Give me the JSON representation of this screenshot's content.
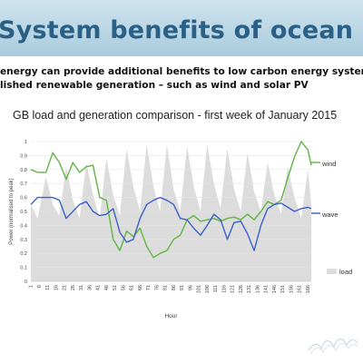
{
  "slide": {
    "title": "System benefits of ocean energy",
    "subtitle_line1": "energy can provide additional benefits to low carbon energy systems due t",
    "subtitle_line2": "lished renewable generation – such as wind and solar PV"
  },
  "chart_data": {
    "type": "line",
    "title": "GB load and generation comparison - first week of January 2015",
    "xlabel": "Hour",
    "ylabel": "Power (normalised to peak)",
    "xlim": [
      1,
      168
    ],
    "ylim": [
      0,
      1
    ],
    "yticks": [
      "0",
      "0.1",
      "0.2",
      "0.3",
      "0.4",
      "0.5",
      "0.6",
      "0.7",
      "0.8",
      "0.9",
      "1"
    ],
    "xticks": [
      "1",
      "6",
      "11",
      "16",
      "21",
      "26",
      "31",
      "36",
      "41",
      "46",
      "51",
      "56",
      "61",
      "66",
      "71",
      "76",
      "81",
      "86",
      "91",
      "96",
      "101",
      "106",
      "111",
      "116",
      "121",
      "126",
      "131",
      "136",
      "141",
      "146",
      "151",
      "156",
      "161",
      "166"
    ],
    "grid": true,
    "colors": {
      "wind": "#5fb544",
      "wave": "#3a5fc8",
      "load": "#dcdcdc"
    },
    "series": [
      {
        "name": "wind",
        "x": [
          1,
          5,
          10,
          14,
          18,
          22,
          26,
          30,
          34,
          38,
          42,
          46,
          50,
          54,
          58,
          62,
          66,
          70,
          74,
          78,
          82,
          86,
          90,
          94,
          98,
          102,
          106,
          110,
          114,
          118,
          122,
          126,
          130,
          134,
          138,
          142,
          146,
          150,
          154,
          158,
          162,
          166,
          168
        ],
        "values": [
          0.8,
          0.78,
          0.78,
          0.92,
          0.85,
          0.73,
          0.85,
          0.78,
          0.82,
          0.83,
          0.6,
          0.58,
          0.3,
          0.22,
          0.36,
          0.32,
          0.38,
          0.25,
          0.17,
          0.2,
          0.22,
          0.3,
          0.33,
          0.44,
          0.47,
          0.43,
          0.44,
          0.45,
          0.43,
          0.45,
          0.46,
          0.44,
          0.48,
          0.44,
          0.5,
          0.57,
          0.55,
          0.58,
          0.74,
          0.89,
          1.0,
          0.94,
          0.83
        ]
      },
      {
        "name": "wave",
        "x": [
          1,
          5,
          10,
          14,
          18,
          22,
          26,
          30,
          34,
          38,
          42,
          46,
          50,
          54,
          58,
          62,
          66,
          70,
          74,
          78,
          82,
          86,
          90,
          94,
          98,
          102,
          106,
          110,
          114,
          118,
          122,
          126,
          130,
          134,
          138,
          142,
          146,
          150,
          154,
          158,
          162,
          166,
          168
        ],
        "values": [
          0.55,
          0.6,
          0.6,
          0.6,
          0.58,
          0.45,
          0.5,
          0.55,
          0.57,
          0.5,
          0.47,
          0.48,
          0.52,
          0.35,
          0.28,
          0.3,
          0.45,
          0.55,
          0.58,
          0.6,
          0.58,
          0.55,
          0.45,
          0.44,
          0.38,
          0.33,
          0.4,
          0.48,
          0.44,
          0.3,
          0.42,
          0.43,
          0.34,
          0.22,
          0.4,
          0.52,
          0.55,
          0.56,
          0.53,
          0.5,
          0.52,
          0.53,
          0.52
        ]
      },
      {
        "name": "load",
        "x": [
          1,
          5,
          10,
          14,
          18,
          22,
          26,
          30,
          34,
          38,
          42,
          46,
          50,
          54,
          58,
          62,
          66,
          70,
          74,
          78,
          82,
          86,
          90,
          94,
          98,
          102,
          106,
          110,
          114,
          118,
          122,
          126,
          130,
          134,
          138,
          142,
          146,
          150,
          154,
          158,
          162,
          166,
          168
        ],
        "values": [
          0.55,
          0.45,
          0.75,
          0.55,
          0.47,
          0.82,
          0.58,
          0.45,
          0.85,
          0.62,
          0.45,
          0.88,
          0.62,
          0.47,
          0.95,
          0.68,
          0.5,
          0.98,
          0.68,
          0.5,
          0.98,
          0.66,
          0.5,
          0.97,
          0.68,
          0.5,
          0.98,
          0.7,
          0.52,
          0.95,
          0.66,
          0.5,
          0.92,
          0.64,
          0.5,
          0.85,
          0.62,
          0.48,
          0.82,
          0.6,
          0.45,
          0.8,
          0.55
        ]
      }
    ]
  }
}
